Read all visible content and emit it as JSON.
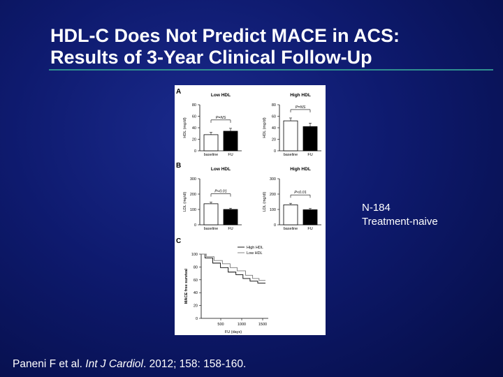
{
  "slide": {
    "title_line1": "HDL-C Does Not Predict MACE in ACS:",
    "title_line2": "Results of 3-Year Clinical Follow-Up",
    "note_line1": "N-184",
    "note_line2": "Treatment-naive",
    "citation_authors": "Paneni F et al.",
    "citation_journal": "Int J Cardiol",
    "citation_rest": ". 2012; 158: 158-160."
  },
  "colors": {
    "background": "#0e1a6e",
    "rule": "#2f8f8f",
    "bar_baseline": "#ffffff",
    "bar_fu": "#000000"
  },
  "chart_data": [
    {
      "panel": "A",
      "type": "bar",
      "title": "Low HDL",
      "ylabel": "HDL (mg/dl)",
      "categories": [
        "baseline",
        "FU"
      ],
      "values": [
        28,
        34
      ],
      "errors": [
        4,
        5
      ],
      "ylim": [
        0,
        80
      ],
      "yticks": [
        0,
        20,
        40,
        60,
        80
      ],
      "annotation": "P=NS"
    },
    {
      "panel": "",
      "type": "bar",
      "title": "High HDL",
      "ylabel": "HDL (mg/dl)",
      "categories": [
        "baseline",
        "FU"
      ],
      "values": [
        52,
        42
      ],
      "errors": [
        5,
        6
      ],
      "ylim": [
        0,
        80
      ],
      "yticks": [
        0,
        20,
        40,
        60,
        80
      ],
      "annotation": "P=NS"
    },
    {
      "panel": "B",
      "type": "bar",
      "title": "Low HDL",
      "ylabel": "LDL (mg/dl)",
      "categories": [
        "baseline",
        "FU"
      ],
      "values": [
        137,
        100
      ],
      "errors": [
        10,
        8
      ],
      "ylim": [
        0,
        300
      ],
      "yticks": [
        0,
        100,
        200,
        300
      ],
      "annotation": "P<0.01"
    },
    {
      "panel": "",
      "type": "bar",
      "title": "High HDL",
      "ylabel": "LDL (mg/dl)",
      "categories": [
        "baseline",
        "FU"
      ],
      "values": [
        130,
        98
      ],
      "errors": [
        10,
        8
      ],
      "ylim": [
        0,
        300
      ],
      "yticks": [
        0,
        100,
        200,
        300
      ],
      "annotation": "P<0.01"
    },
    {
      "panel": "C",
      "type": "line",
      "title": "",
      "xlabel": "FU (days)",
      "ylabel": "MACE free survival",
      "xlim": [
        0,
        1000
      ],
      "ylim": [
        0,
        100
      ],
      "xticks": [
        500,
        1000,
        1500
      ],
      "xtick_labels": [
        "500",
        "1000",
        "1500"
      ],
      "yticks": [
        0,
        20,
        40,
        60,
        80,
        100
      ],
      "legend_position": "top-right",
      "series": [
        {
          "name": "High HDL",
          "x": [
            0,
            60,
            60,
            180,
            180,
            300,
            300,
            420,
            420,
            540,
            540,
            650,
            650,
            760,
            760,
            880,
            880,
            1000
          ],
          "y": [
            100,
            100,
            94,
            94,
            86,
            86,
            79,
            79,
            72,
            72,
            68,
            68,
            62,
            62,
            58,
            58,
            55,
            55
          ]
        },
        {
          "name": "Low HDL",
          "x": [
            0,
            80,
            80,
            200,
            200,
            330,
            330,
            450,
            450,
            560,
            560,
            690,
            690,
            800,
            800,
            900,
            900,
            1000
          ],
          "y": [
            100,
            100,
            96,
            96,
            90,
            90,
            85,
            85,
            79,
            79,
            74,
            74,
            67,
            67,
            62,
            62,
            59,
            59
          ]
        }
      ]
    }
  ]
}
